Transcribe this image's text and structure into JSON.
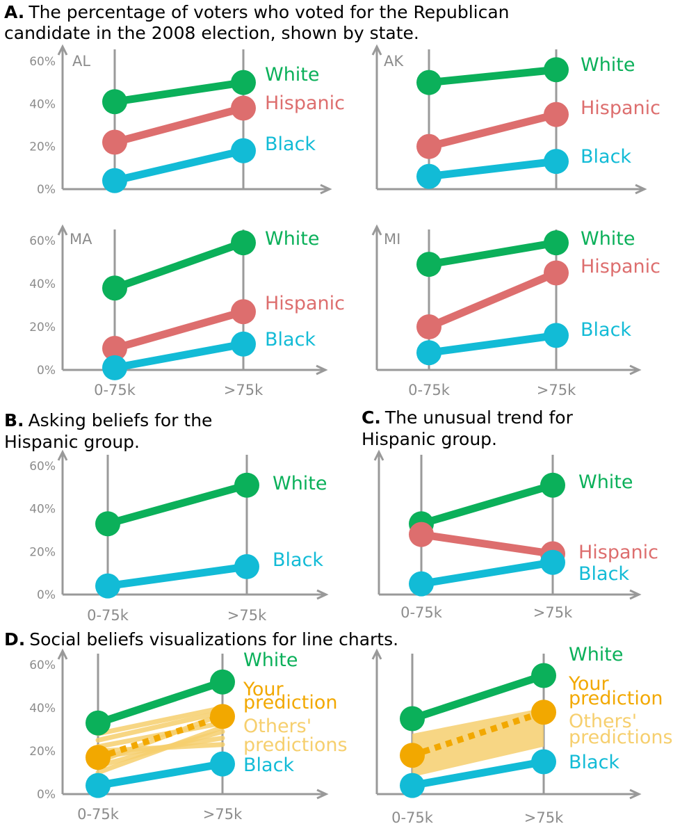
{
  "captions": {
    "A_letter": "A.",
    "A_line1": "The percentage of voters who voted for the Republican",
    "A_line2": "candidate in the 2008 election, shown by state.",
    "B_letter": "B.",
    "B_line1": "Asking beliefs for the",
    "B_line2": "Hispanic group.",
    "C_letter": "C.",
    "C_line1": "The unusual trend for",
    "C_line2": "Hispanic group.",
    "D_letter": "D.",
    "D_line1": "Social beliefs visualizations for line charts."
  },
  "colors": {
    "White": "#0bb05a",
    "Hispanic": "#dd6e6e",
    "Black": "#12bbd6",
    "Your prediction": "#f2a800",
    "Others' predictions": "#f6cf6e",
    "axis": "#999999"
  },
  "chart_data": [
    {
      "type": "line",
      "panel": "A",
      "title": "AL",
      "categories": [
        "0-75k",
        ">75k"
      ],
      "ylim": [
        0,
        60
      ],
      "yticks": [
        "0%",
        "20%",
        "40%",
        "60%"
      ],
      "series": [
        {
          "name": "White",
          "values": [
            41,
            50
          ]
        },
        {
          "name": "Hispanic",
          "values": [
            22,
            38
          ]
        },
        {
          "name": "Black",
          "values": [
            4,
            18
          ]
        }
      ]
    },
    {
      "type": "line",
      "panel": "A",
      "title": "AK",
      "categories": [
        "0-75k",
        ">75k"
      ],
      "ylim": [
        0,
        60
      ],
      "series": [
        {
          "name": "White",
          "values": [
            50,
            56
          ]
        },
        {
          "name": "Hispanic",
          "values": [
            20,
            35
          ]
        },
        {
          "name": "Black",
          "values": [
            6,
            13
          ]
        }
      ]
    },
    {
      "type": "line",
      "panel": "A",
      "title": "MA",
      "categories": [
        "0-75k",
        ">75k"
      ],
      "ylim": [
        0,
        60
      ],
      "yticks": [
        "0%",
        "20%",
        "40%",
        "60%"
      ],
      "xticks": [
        "0-75k",
        ">75k"
      ],
      "series": [
        {
          "name": "White",
          "values": [
            38,
            59
          ]
        },
        {
          "name": "Hispanic",
          "values": [
            10,
            27
          ]
        },
        {
          "name": "Black",
          "values": [
            1,
            12
          ]
        }
      ]
    },
    {
      "type": "line",
      "panel": "A",
      "title": "MI",
      "categories": [
        "0-75k",
        ">75k"
      ],
      "ylim": [
        0,
        60
      ],
      "xticks": [
        "0-75k",
        ">75k"
      ],
      "series": [
        {
          "name": "White",
          "values": [
            49,
            59
          ]
        },
        {
          "name": "Hispanic",
          "values": [
            20,
            45
          ]
        },
        {
          "name": "Black",
          "values": [
            8,
            16
          ]
        }
      ]
    },
    {
      "type": "line",
      "panel": "B",
      "categories": [
        "0-75k",
        ">75k"
      ],
      "ylim": [
        0,
        60
      ],
      "yticks": [
        "0%",
        "20%",
        "40%",
        "60%"
      ],
      "xticks": [
        "0-75k",
        ">75k"
      ],
      "series": [
        {
          "name": "White",
          "values": [
            33,
            51
          ]
        },
        {
          "name": "Black",
          "values": [
            4,
            13
          ]
        }
      ]
    },
    {
      "type": "line",
      "panel": "C",
      "categories": [
        "0-75k",
        ">75k"
      ],
      "ylim": [
        0,
        60
      ],
      "xticks": [
        "0-75k",
        ">75k"
      ],
      "series": [
        {
          "name": "White",
          "values": [
            33,
            51
          ]
        },
        {
          "name": "Hispanic",
          "values": [
            28,
            19
          ]
        },
        {
          "name": "Black",
          "values": [
            5,
            15
          ]
        }
      ]
    },
    {
      "type": "line",
      "panel": "D",
      "categories": [
        "0-75k",
        ">75k"
      ],
      "ylim": [
        0,
        60
      ],
      "yticks": [
        "0%",
        "20%",
        "40%",
        "60%"
      ],
      "xticks": [
        "0-75k",
        ">75k"
      ],
      "series": [
        {
          "name": "White",
          "values": [
            33,
            52
          ]
        },
        {
          "name": "Your prediction",
          "values": [
            17,
            36
          ]
        },
        {
          "name": "Black",
          "values": [
            4,
            14
          ]
        }
      ],
      "others_lines": [
        [
          10,
          31
        ],
        [
          13,
          29
        ],
        [
          17,
          26
        ],
        [
          22,
          33
        ],
        [
          25,
          38
        ],
        [
          28,
          40
        ],
        [
          20,
          23
        ],
        [
          15,
          37
        ]
      ],
      "labels": [
        "White",
        "Your",
        "prediction",
        "Others'",
        "predictions",
        "Black"
      ]
    },
    {
      "type": "line",
      "panel": "D",
      "categories": [
        "0-75k",
        ">75k"
      ],
      "ylim": [
        0,
        60
      ],
      "xticks": [
        "0-75k",
        ">75k"
      ],
      "series": [
        {
          "name": "White",
          "values": [
            35,
            55
          ]
        },
        {
          "name": "Your prediction",
          "values": [
            18,
            38
          ]
        },
        {
          "name": "Black",
          "values": [
            4,
            15
          ]
        }
      ],
      "others_band": {
        "lower": [
          8,
          22
        ],
        "upper": [
          28,
          40
        ]
      },
      "labels": [
        "White",
        "Your",
        "prediction",
        "Others'",
        "predictions",
        "Black"
      ]
    }
  ]
}
